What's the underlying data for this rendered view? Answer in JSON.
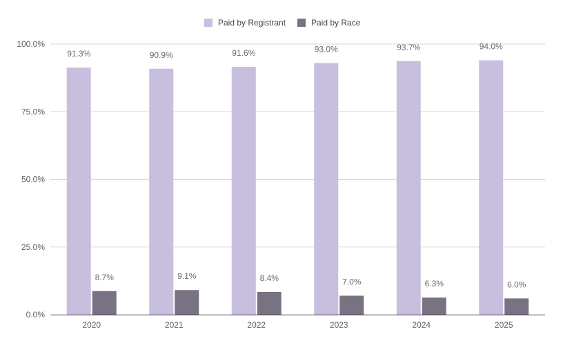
{
  "chart_data": {
    "type": "bar",
    "categories": [
      "2020",
      "2021",
      "2022",
      "2023",
      "2024",
      "2025"
    ],
    "series": [
      {
        "name": "Paid by Registrant",
        "color": "#c8bfdf",
        "values": [
          91.3,
          90.9,
          91.6,
          93.0,
          93.7,
          94.0
        ],
        "labels": [
          "91.3%",
          "90.9%",
          "91.6%",
          "93.0%",
          "93.7%",
          "94.0%"
        ]
      },
      {
        "name": "Paid by Race",
        "color": "#787283",
        "values": [
          8.7,
          9.1,
          8.4,
          7.0,
          6.3,
          6.0
        ],
        "labels": [
          "8.7%",
          "9.1%",
          "8.4%",
          "7.0%",
          "6.3%",
          "6.0%"
        ]
      }
    ],
    "ylim": [
      0,
      100
    ],
    "yticks": [
      0,
      25,
      50,
      75,
      100
    ],
    "ytick_labels": [
      "0.0%",
      "25.0%",
      "50.0%",
      "75.0%",
      "100.0%"
    ],
    "grid": true,
    "legend_position": "top-center"
  }
}
